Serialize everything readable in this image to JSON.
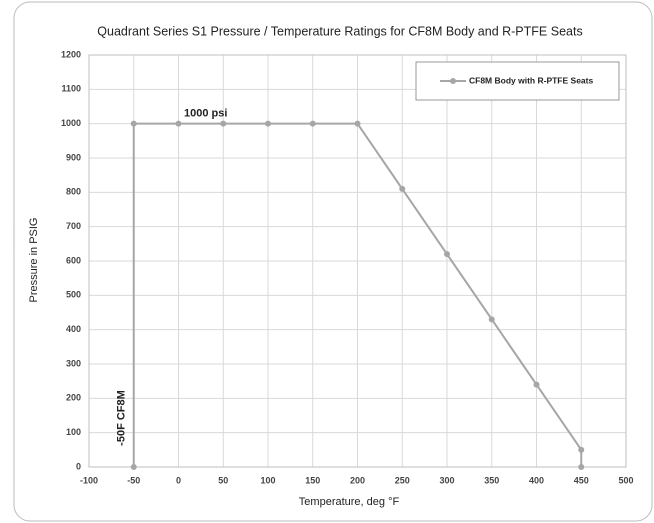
{
  "chart_data": {
    "type": "line",
    "title": "Quadrant Series S1 Pressure / Temperature Ratings for CF8M Body and R-PTFE Seats",
    "x_label": "Temperature, deg °F",
    "y_label": "Pressure in PSIG",
    "annotations": [
      "1000 psi",
      "-50F CF8M"
    ],
    "x": [
      -50,
      -50,
      0,
      50,
      100,
      150,
      200,
      250,
      300,
      350,
      400,
      450,
      450
    ],
    "series": [
      {
        "name": "CF8M Body with R-PTFE Seats",
        "color": "#a6a6a6",
        "values": [
          0,
          1000,
          1000,
          1000,
          1000,
          1000,
          1000,
          810,
          620,
          430,
          240,
          50,
          0
        ]
      }
    ],
    "xlim": [
      -100,
      500
    ],
    "xticks": [
      -100,
      -50,
      0,
      50,
      100,
      150,
      200,
      250,
      300,
      350,
      400,
      450,
      500
    ],
    "ylim": [
      0,
      1200
    ],
    "yticks": [
      0,
      100,
      200,
      300,
      400,
      500,
      600,
      700,
      800,
      900,
      1000,
      1100,
      1200
    ],
    "grid": true,
    "legend": "upper right"
  }
}
